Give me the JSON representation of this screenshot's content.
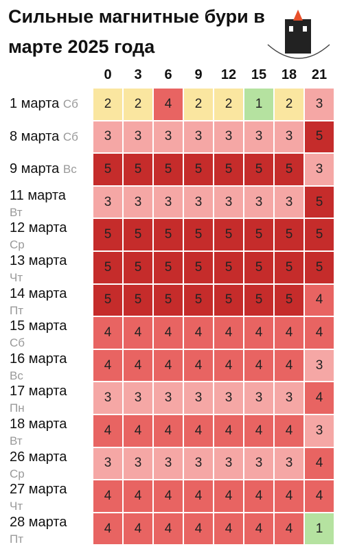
{
  "header": {
    "title": "Сильные магнитные бури в марте 2025 года"
  },
  "table": {
    "hours": [
      0,
      3,
      6,
      9,
      12,
      15,
      18,
      21
    ],
    "colors": {
      "1": "#b5e2a0",
      "2": "#fae6a0",
      "3": "#f5a7a5",
      "4": "#e86462",
      "5": "#c52c2b"
    },
    "rows": [
      {
        "date": "1 марта",
        "day": "Сб",
        "values": [
          2,
          2,
          4,
          2,
          2,
          1,
          2,
          3
        ]
      },
      {
        "date": "8 марта",
        "day": "Сб",
        "values": [
          3,
          3,
          3,
          3,
          3,
          3,
          3,
          5
        ]
      },
      {
        "date": "9 марта",
        "day": "Вс",
        "values": [
          5,
          5,
          5,
          5,
          5,
          5,
          5,
          3
        ]
      },
      {
        "date": "11 марта",
        "day": "Вт",
        "values": [
          3,
          3,
          3,
          3,
          3,
          3,
          3,
          5
        ]
      },
      {
        "date": "12 марта",
        "day": "Ср",
        "values": [
          5,
          5,
          5,
          5,
          5,
          5,
          5,
          5
        ]
      },
      {
        "date": "13 марта",
        "day": "Чт",
        "values": [
          5,
          5,
          5,
          5,
          5,
          5,
          5,
          5
        ]
      },
      {
        "date": "14 марта",
        "day": "Пт",
        "values": [
          5,
          5,
          5,
          5,
          5,
          5,
          5,
          4
        ]
      },
      {
        "date": "15 марта",
        "day": "Сб",
        "values": [
          4,
          4,
          4,
          4,
          4,
          4,
          4,
          4
        ]
      },
      {
        "date": "16 марта",
        "day": "Вс",
        "values": [
          4,
          4,
          4,
          4,
          4,
          4,
          4,
          3
        ]
      },
      {
        "date": "17 марта",
        "day": "Пн",
        "values": [
          3,
          3,
          3,
          3,
          3,
          3,
          3,
          4
        ]
      },
      {
        "date": "18 марта",
        "day": "Вт",
        "values": [
          4,
          4,
          4,
          4,
          4,
          4,
          4,
          3
        ]
      },
      {
        "date": "26 марта",
        "day": "Ср",
        "values": [
          3,
          3,
          3,
          3,
          3,
          3,
          3,
          4
        ]
      },
      {
        "date": "27 марта",
        "day": "Чт",
        "values": [
          4,
          4,
          4,
          4,
          4,
          4,
          4,
          4
        ]
      },
      {
        "date": "28 марта",
        "day": "Пт",
        "values": [
          4,
          4,
          4,
          4,
          4,
          4,
          4,
          1
        ]
      }
    ]
  }
}
